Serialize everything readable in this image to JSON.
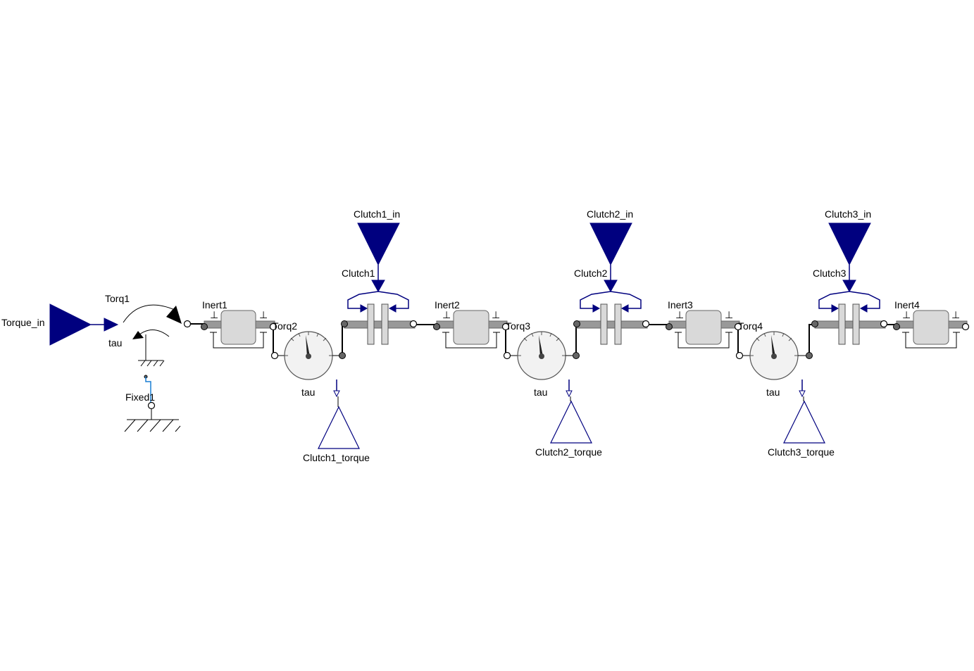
{
  "labels": {
    "torque_in": "Torque_in",
    "torq1": "Torq1",
    "tau_source": "tau",
    "fixed1": "Fixed1",
    "inert1": "Inert1",
    "inert2": "Inert2",
    "inert3": "Inert3",
    "inert4": "Inert4",
    "torq2": "Torq2",
    "torq3": "Torq3",
    "torq4": "Torq4",
    "tau2": "tau",
    "tau3": "tau",
    "tau4": "tau",
    "clutch1": "Clutch1",
    "clutch2": "Clutch2",
    "clutch3": "Clutch3",
    "clutch1_in": "Clutch1_in",
    "clutch2_in": "Clutch2_in",
    "clutch3_in": "Clutch3_in",
    "clutch1_torque": "Clutch1_torque",
    "clutch2_torque": "Clutch2_torque",
    "clutch3_torque": "Clutch3_torque",
    "perp": "⊥"
  },
  "colors": {
    "signal": "#00007f",
    "component_fill": "#d9d9d9",
    "shaft": "#999999",
    "fixed_wire": "#1a7fd4"
  }
}
